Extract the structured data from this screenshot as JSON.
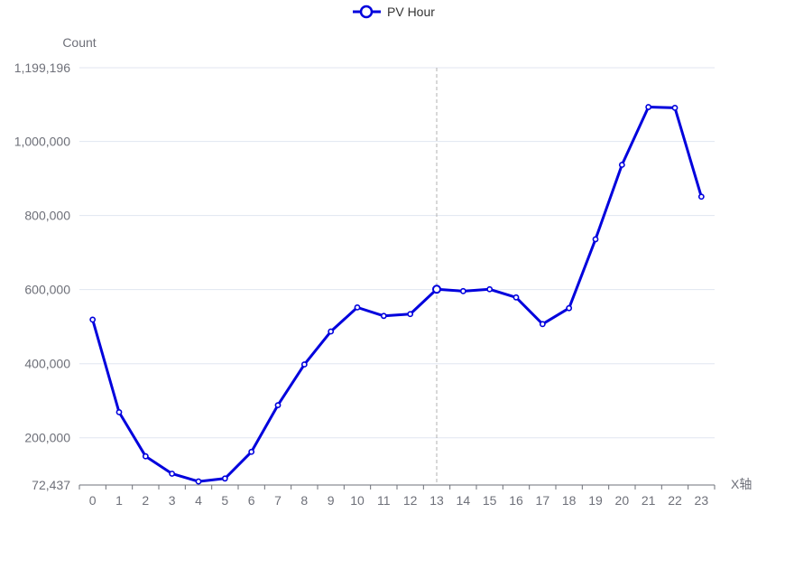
{
  "chart_data": {
    "type": "line",
    "legend": {
      "label": "PV Hour",
      "placement": "top-center"
    },
    "ylabel": "Count",
    "xlabel": "X轴",
    "ylim": [
      72437,
      1199196
    ],
    "yticks": [
      72437,
      200000,
      400000,
      600000,
      800000,
      1000000,
      1199196
    ],
    "ytick_labels": [
      "72,437",
      "200,000",
      "400,000",
      "600,000",
      "800,000",
      "1,000,000",
      "1,199,196"
    ],
    "categories": [
      "0",
      "1",
      "2",
      "3",
      "4",
      "5",
      "6",
      "7",
      "8",
      "9",
      "10",
      "11",
      "12",
      "13",
      "14",
      "15",
      "16",
      "17",
      "18",
      "19",
      "20",
      "21",
      "22",
      "23"
    ],
    "series": [
      {
        "name": "PV Hour",
        "values": [
          519000,
          269000,
          150000,
          103000,
          82000,
          90000,
          162000,
          288000,
          398000,
          487000,
          552000,
          529000,
          534000,
          601000,
          596000,
          601000,
          579000,
          507000,
          550000,
          736000,
          937000,
          1093000,
          1091000,
          851000
        ]
      }
    ],
    "highlight_index": 13,
    "grid": true,
    "colors": {
      "line": "#0000dd",
      "grid": "#e0e6f1",
      "axis": "#6e7079",
      "text": "#6e7079",
      "pointer": "#b0b0b0"
    }
  }
}
